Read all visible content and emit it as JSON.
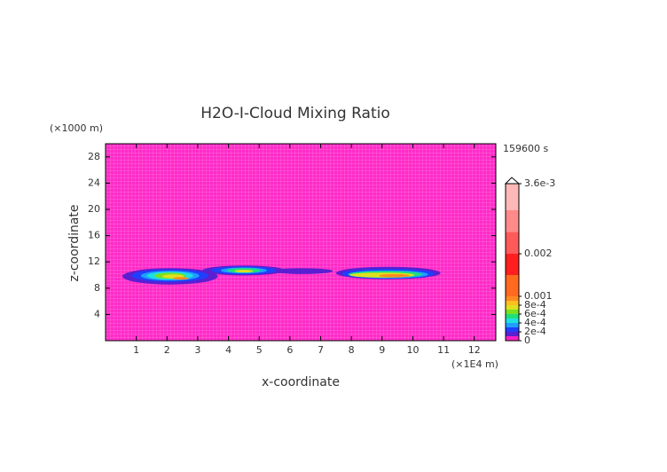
{
  "chart_data": {
    "type": "contour",
    "title": "H2O-I-Cloud Mixing Ratio",
    "x_label": "x-coordinate",
    "y_label": "z-coordinate",
    "x_unit": "(×1E4 m)",
    "y_unit": "(×1000 m)",
    "time_label": "159600 s",
    "background_color": "#ff2bc8",
    "xlim": [
      0,
      12.7
    ],
    "ylim": [
      0,
      30
    ],
    "xticks": [
      1,
      2,
      3,
      4,
      5,
      6,
      7,
      8,
      9,
      10,
      11,
      12
    ],
    "yticks": [
      4,
      8,
      12,
      16,
      20,
      24,
      28
    ],
    "colorbar": {
      "levels": [
        0,
        0.0001,
        0.0002,
        0.0003,
        0.0004,
        0.0005,
        0.0006,
        0.0007,
        0.0008,
        0.0009,
        0.001,
        0.0015,
        0.002,
        0.0025,
        0.003,
        0.0036
      ],
      "colors": [
        "#ff1fc4",
        "#5a1fd0",
        "#1f3fff",
        "#1fa0ff",
        "#1fe0e0",
        "#1fe07a",
        "#7ae01f",
        "#e0e01f",
        "#ffc01f",
        "#ff8a1f",
        "#ff6a1f",
        "#ff1f1f",
        "#ff5a5a",
        "#ff8a8a",
        "#ffb8b8"
      ],
      "ticks": [
        0,
        {
          "value": 0.0002,
          "label": "2e-4"
        },
        {
          "value": 0.0004,
          "label": "4e-4"
        },
        {
          "value": 0.0006,
          "label": "6e-4"
        },
        {
          "value": 0.0008,
          "label": "8e-4"
        },
        0.001,
        0.002,
        {
          "value": 0.0036,
          "label": "3.6e-3"
        }
      ]
    },
    "contours": [
      {
        "level": 0.0001,
        "cx": 6.4,
        "cz": 10.6,
        "rx": 1.0,
        "rz": 0.45
      },
      {
        "level": 0.0001,
        "cx": 2.1,
        "cz": 9.8,
        "rx": 1.55,
        "rz": 1.25
      },
      {
        "level": 0.0002,
        "cx": 2.1,
        "cz": 9.9,
        "rx": 1.25,
        "rz": 0.95
      },
      {
        "level": 0.0003,
        "cx": 2.1,
        "cz": 9.9,
        "rx": 0.95,
        "rz": 0.75
      },
      {
        "level": 0.0004,
        "cx": 2.1,
        "cz": 9.9,
        "rx": 0.75,
        "rz": 0.6
      },
      {
        "level": 0.0006,
        "cx": 2.1,
        "cz": 9.9,
        "rx": 0.5,
        "rz": 0.45
      },
      {
        "level": 0.0007,
        "cx": 2.2,
        "cz": 9.8,
        "rx": 0.35,
        "rz": 0.3
      },
      {
        "level": 0.0009,
        "cx": 2.45,
        "cz": 9.5,
        "rx": 0.25,
        "rz": 0.2
      },
      {
        "level": 0.0001,
        "cx": 4.5,
        "cz": 10.7,
        "rx": 1.35,
        "rz": 0.75
      },
      {
        "level": 0.0002,
        "cx": 4.5,
        "cz": 10.7,
        "rx": 1.05,
        "rz": 0.6
      },
      {
        "level": 0.0003,
        "cx": 4.5,
        "cz": 10.7,
        "rx": 0.75,
        "rz": 0.45
      },
      {
        "level": 0.0005,
        "cx": 4.5,
        "cz": 10.7,
        "rx": 0.55,
        "rz": 0.35
      },
      {
        "level": 0.0007,
        "cx": 4.5,
        "cz": 10.6,
        "rx": 0.3,
        "rz": 0.2
      },
      {
        "level": 0.0001,
        "cx": 9.2,
        "cz": 10.3,
        "rx": 1.7,
        "rz": 0.95
      },
      {
        "level": 0.0002,
        "cx": 9.2,
        "cz": 10.2,
        "rx": 1.5,
        "rz": 0.75
      },
      {
        "level": 0.0003,
        "cx": 9.2,
        "cz": 10.1,
        "rx": 1.3,
        "rz": 0.6
      },
      {
        "level": 0.0005,
        "cx": 9.1,
        "cz": 10.1,
        "rx": 1.2,
        "rz": 0.5
      },
      {
        "level": 0.0007,
        "cx": 9.0,
        "cz": 10.0,
        "rx": 1.05,
        "rz": 0.38
      },
      {
        "level": 0.0009,
        "cx": 9.4,
        "cz": 9.9,
        "rx": 0.5,
        "rz": 0.25
      }
    ]
  }
}
